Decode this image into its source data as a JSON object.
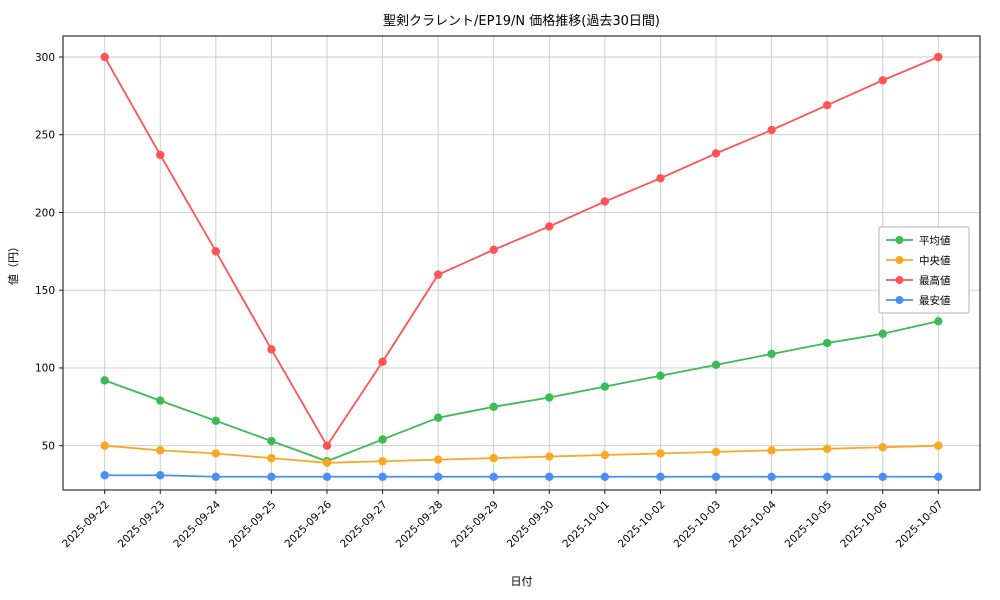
{
  "figure": {
    "background": "#ffffff"
  },
  "chart_data": {
    "type": "line",
    "title": "聖剣クラレント/EP19/N 価格推移(過去30日間)",
    "xlabel": "日付",
    "ylabel": "値（円）",
    "grid": true,
    "legend_position": "center-right",
    "yticks": [
      50,
      100,
      150,
      200,
      250,
      300
    ],
    "ylim": [
      21.5,
      313.5
    ],
    "x": [
      "2025-09-22",
      "2025-09-23",
      "2025-09-24",
      "2025-09-25",
      "2025-09-26",
      "2025-09-27",
      "2025-09-28",
      "2025-09-29",
      "2025-09-30",
      "2025-10-01",
      "2025-10-02",
      "2025-10-03",
      "2025-10-04",
      "2025-10-05",
      "2025-10-06",
      "2025-10-07"
    ],
    "series": [
      {
        "name": "平均値",
        "color": "#3cba54",
        "values": [
          92,
          79,
          66,
          53,
          40,
          54,
          68,
          75,
          81,
          88,
          95,
          102,
          109,
          116,
          122,
          130
        ]
      },
      {
        "name": "中央値",
        "color": "#f9a825",
        "values": [
          50,
          47,
          45,
          42,
          39,
          40,
          41,
          42,
          43,
          44,
          45,
          46,
          47,
          48,
          49,
          50
        ]
      },
      {
        "name": "最高値",
        "color": "#ff5355",
        "values": [
          300,
          237,
          175,
          112,
          50,
          104,
          160,
          176,
          191,
          207,
          222,
          238,
          253,
          269,
          285,
          300
        ]
      },
      {
        "name": "最安値",
        "color": "#4c8ef7",
        "values": [
          31,
          31,
          30,
          30,
          30,
          30,
          30,
          30,
          30,
          30,
          30,
          30,
          30,
          30,
          30,
          30
        ]
      }
    ]
  }
}
